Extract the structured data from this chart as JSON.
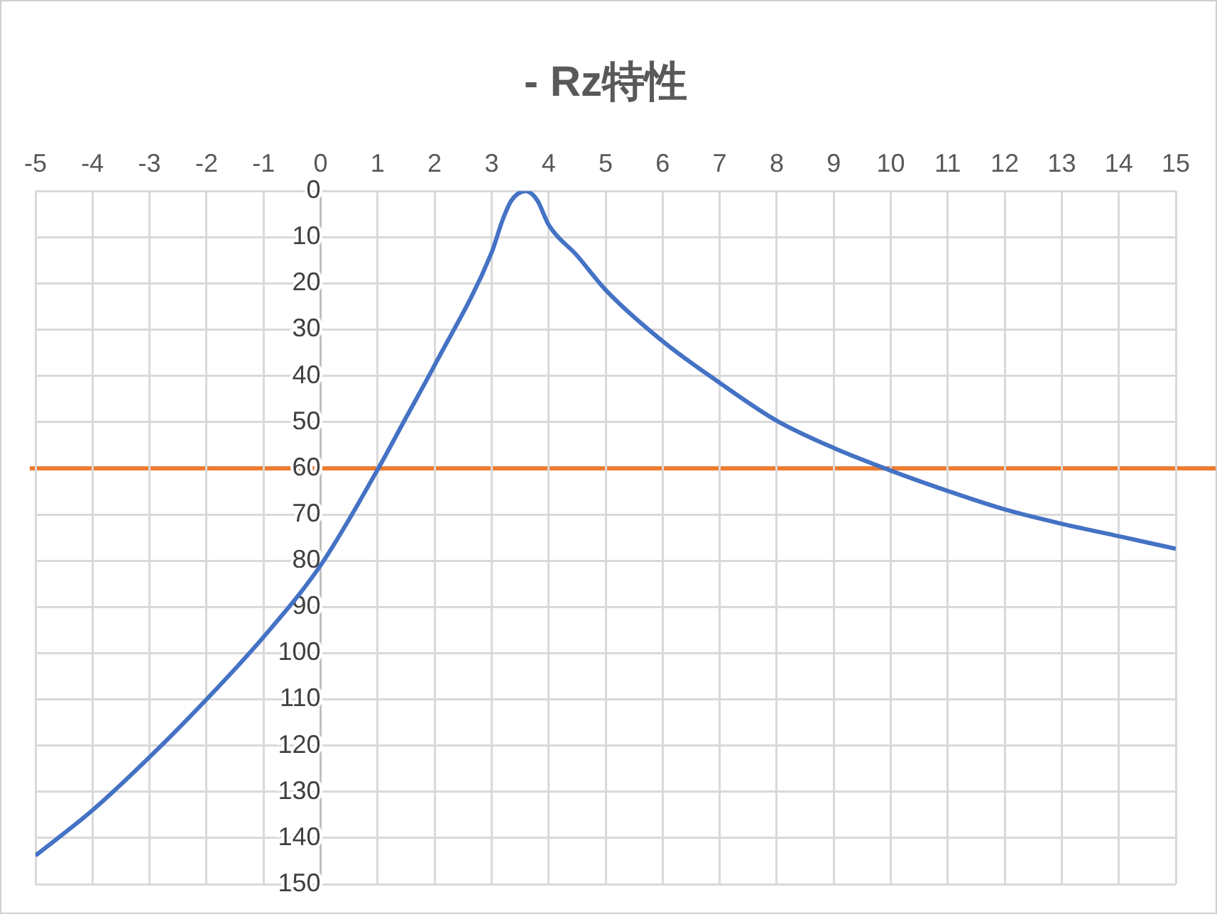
{
  "chart_data": {
    "type": "line",
    "title": "- Rz特性",
    "x": [
      -5,
      -4,
      -3,
      -2,
      -1,
      0,
      1,
      1.5,
      2,
      3,
      3.2,
      3.35,
      3.6,
      3.8,
      4,
      4.5,
      5,
      6,
      7,
      8,
      9,
      10,
      11,
      12,
      13,
      14,
      15
    ],
    "series": [
      {
        "color": "#4472c4",
        "values": [
          143.8,
          134,
          122.5,
          110,
          96.5,
          81,
          60.3,
          49,
          37.7,
          13.3,
          6,
          2,
          0,
          2,
          7.3,
          14,
          21.4,
          32.5,
          41.5,
          49.7,
          55.6,
          60.5,
          64.9,
          68.9,
          72,
          74.7,
          77.4
        ]
      }
    ],
    "xlim": [
      -5,
      15
    ],
    "xticks": [
      -5,
      -4,
      -3,
      -2,
      -1,
      0,
      1,
      2,
      3,
      4,
      5,
      6,
      7,
      8,
      9,
      10,
      11,
      12,
      13,
      14,
      15
    ],
    "ylim": [
      150,
      0
    ],
    "yticks": [
      0,
      10,
      20,
      30,
      40,
      50,
      60,
      70,
      80,
      90,
      100,
      110,
      120,
      130,
      140,
      150
    ],
    "ref_lines": [
      {
        "axis": "y",
        "value": 60,
        "color": "#ed7d31"
      }
    ],
    "grid": true,
    "marker": "none",
    "line_style": "solid",
    "legend": false
  }
}
